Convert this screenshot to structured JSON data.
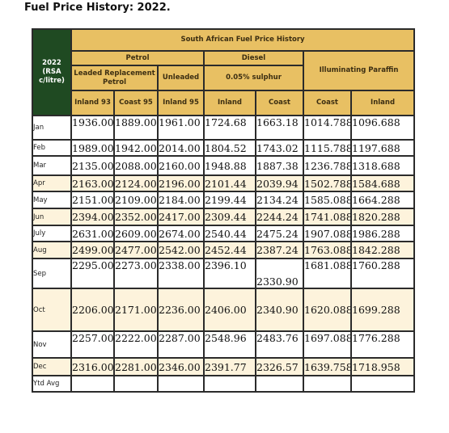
{
  "page_title": "Fuel Price History: 2022.",
  "table": {
    "corner_label": "2022 (RSA c/litre)",
    "main_header": "South African Fuel Price History",
    "groups": {
      "petrol": "Petrol",
      "diesel": "Diesel",
      "paraffin": "Illuminating Paraffin"
    },
    "subgroups": {
      "lrp": "Leaded Replacement Petrol",
      "unleaded": "Unleaded",
      "diesel_sulphur": "0.05% sulphur"
    },
    "columns": [
      "Inland 93",
      "Coast 95",
      "Inland 95",
      "Inland",
      "Coast",
      "Coast",
      "Inland"
    ],
    "rows": [
      {
        "month": "Jan",
        "values": [
          "1936.00",
          "1889.00",
          "1961.00",
          "1724.68",
          "1663.18",
          "1014.788",
          "1096.688"
        ]
      },
      {
        "month": "Feb",
        "values": [
          "1989.00",
          "1942.00",
          "2014.00",
          "1804.52",
          "1743.02",
          "1115.788",
          "1197.688"
        ]
      },
      {
        "month": "Mar",
        "values": [
          "2135.00",
          "2088.00",
          "2160.00",
          "1948.88",
          "1887.38",
          "1236.788",
          "1318.688"
        ]
      },
      {
        "month": "Apr",
        "values": [
          "2163.00",
          "2124.00",
          "2196.00",
          "2101.44",
          "2039.94",
          "1502.788",
          "1584.688"
        ]
      },
      {
        "month": "May",
        "values": [
          "2151.00",
          "2109.00",
          "2184.00",
          "2199.44",
          "2134.24",
          "1585.088",
          "1664.288"
        ]
      },
      {
        "month": "Jun",
        "values": [
          "2394.00",
          "2352.00",
          "2417.00",
          "2309.44",
          "2244.24",
          "1741.088",
          "1820.288"
        ]
      },
      {
        "month": "July",
        "values": [
          "2631.00",
          "2609.00",
          "2674.00",
          "2540.44",
          "2475.24",
          "1907.088",
          "1986.288"
        ]
      },
      {
        "month": "Aug",
        "values": [
          "2499.00",
          "2477.00",
          "2542.00",
          "2452.44",
          "2387.24",
          "1763.088",
          "1842.288"
        ]
      },
      {
        "month": "Sep",
        "values": [
          "2295.00",
          "2273.00",
          "2338.00",
          "2396.10",
          "2330.90",
          "1681.088",
          "1760.288"
        ]
      },
      {
        "month": "Oct",
        "values": [
          "2206.00",
          "2171.00",
          "2236.00",
          "2406.00",
          "2340.90",
          "1620.088",
          "1699.288"
        ]
      },
      {
        "month": "Nov",
        "values": [
          "2257.00",
          "2222.00",
          "2287.00",
          "2548.96",
          "2483.76",
          "1697.088",
          "1776.288"
        ]
      },
      {
        "month": "Dec",
        "values": [
          "2316.00",
          "2281.00",
          "2346.00",
          "2391.77",
          "2326.57",
          "1639.758",
          "1718.958"
        ]
      },
      {
        "month": "Ytd Avg",
        "values": [
          "",
          "",
          "",
          "",
          "",
          "",
          ""
        ]
      }
    ]
  },
  "colors": {
    "header_bg": "#e8c063",
    "header_text": "#3c2e12",
    "corner_bg": "#1f4a22",
    "row_alt_bg": "#fdf3dc",
    "border": "#2b2b2b"
  }
}
